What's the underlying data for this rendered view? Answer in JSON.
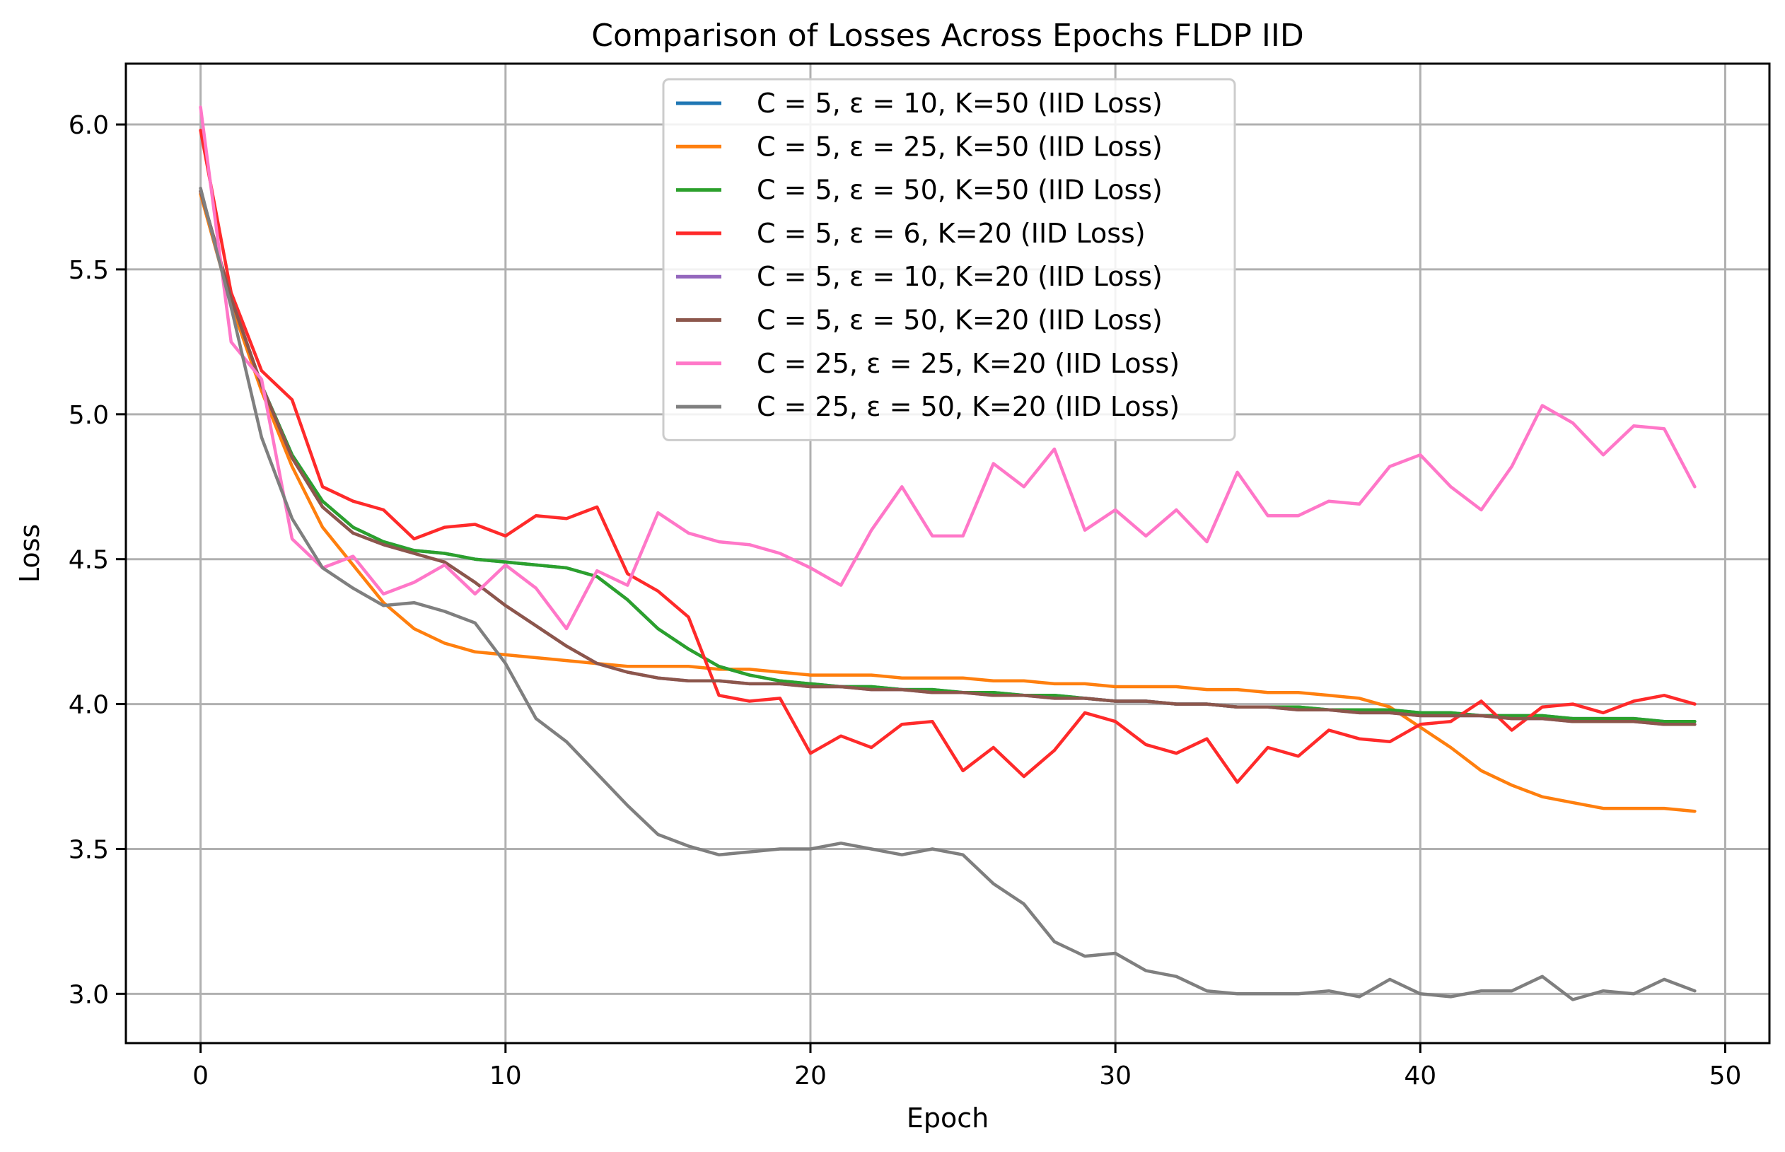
{
  "chart_data": {
    "type": "line",
    "title": "Comparison of Losses Across Epochs FLDP IID",
    "xlabel": "Epoch",
    "ylabel": "Loss",
    "xlim": [
      -2.45,
      51.45
    ],
    "ylim": [
      2.83,
      6.21
    ],
    "xticks": [
      0,
      10,
      20,
      30,
      40,
      50
    ],
    "xtick_labels": [
      "0",
      "10",
      "20",
      "30",
      "40",
      "50"
    ],
    "yticks": [
      3.0,
      3.5,
      4.0,
      4.5,
      5.0,
      5.5,
      6.0
    ],
    "ytick_labels": [
      "3.0",
      "3.5",
      "4.0",
      "4.5",
      "5.0",
      "5.5",
      "6.0"
    ],
    "grid": true,
    "legend_position": "top-center",
    "x": [
      0,
      1,
      2,
      3,
      4,
      5,
      6,
      7,
      8,
      9,
      10,
      11,
      12,
      13,
      14,
      15,
      16,
      17,
      18,
      19,
      20,
      21,
      22,
      23,
      24,
      25,
      26,
      27,
      28,
      29,
      30,
      31,
      32,
      33,
      34,
      35,
      36,
      37,
      38,
      39,
      40,
      41,
      42,
      43,
      44,
      45,
      46,
      47,
      48,
      49
    ],
    "series": [
      {
        "name": "C = 5, ε = 10, K=50 (IID Loss)",
        "color": "#1f77b4",
        "values": [
          5.77,
          5.4,
          5.1,
          4.86,
          4.7,
          4.61,
          4.56,
          4.53,
          4.52,
          4.5,
          4.49,
          4.48,
          4.47,
          4.44,
          4.36,
          4.26,
          4.19,
          4.13,
          4.1,
          4.08,
          4.07,
          4.06,
          4.06,
          4.05,
          4.05,
          4.04,
          4.04,
          4.03,
          4.03,
          4.02,
          4.01,
          4.01,
          4.0,
          4.0,
          3.99,
          3.99,
          3.99,
          3.98,
          3.98,
          3.98,
          3.97,
          3.97,
          3.96,
          3.96,
          3.96,
          3.95,
          3.95,
          3.95,
          3.94,
          3.94
        ]
      },
      {
        "name": "C = 5, ε = 25, K=50 (IID Loss)",
        "color": "#ff7f0e",
        "values": [
          5.76,
          5.38,
          5.08,
          4.82,
          4.61,
          4.48,
          4.35,
          4.26,
          4.21,
          4.18,
          4.17,
          4.16,
          4.15,
          4.14,
          4.13,
          4.13,
          4.13,
          4.12,
          4.12,
          4.11,
          4.1,
          4.1,
          4.1,
          4.09,
          4.09,
          4.09,
          4.08,
          4.08,
          4.07,
          4.07,
          4.06,
          4.06,
          4.06,
          4.05,
          4.05,
          4.04,
          4.04,
          4.03,
          4.02,
          3.99,
          3.92,
          3.85,
          3.77,
          3.72,
          3.68,
          3.66,
          3.64,
          3.64,
          3.64,
          3.63
        ]
      },
      {
        "name": "C = 5, ε = 50, K=50 (IID Loss)",
        "color": "#2ca02c",
        "values": [
          5.77,
          5.4,
          5.1,
          4.86,
          4.7,
          4.61,
          4.56,
          4.53,
          4.52,
          4.5,
          4.49,
          4.48,
          4.47,
          4.44,
          4.36,
          4.26,
          4.19,
          4.13,
          4.1,
          4.08,
          4.07,
          4.06,
          4.06,
          4.05,
          4.05,
          4.04,
          4.04,
          4.03,
          4.03,
          4.02,
          4.01,
          4.01,
          4.0,
          4.0,
          3.99,
          3.99,
          3.99,
          3.98,
          3.98,
          3.98,
          3.97,
          3.97,
          3.96,
          3.96,
          3.96,
          3.95,
          3.95,
          3.95,
          3.94,
          3.94
        ]
      },
      {
        "name": "C = 5, ε = 6, K=20 (IID Loss)",
        "color": "#ff2a2a",
        "values": [
          5.98,
          5.42,
          5.15,
          5.05,
          4.75,
          4.7,
          4.67,
          4.57,
          4.61,
          4.62,
          4.58,
          4.65,
          4.64,
          4.68,
          4.45,
          4.39,
          4.3,
          4.03,
          4.01,
          4.02,
          3.83,
          3.89,
          3.85,
          3.93,
          3.94,
          3.77,
          3.85,
          3.75,
          3.84,
          3.97,
          3.94,
          3.86,
          3.83,
          3.88,
          3.73,
          3.85,
          3.82,
          3.91,
          3.88,
          3.87,
          3.93,
          3.94,
          4.01,
          3.91,
          3.99,
          4.0,
          3.97,
          4.01,
          4.03,
          4.0
        ]
      },
      {
        "name": "C = 5, ε = 10, K=20 (IID Loss)",
        "color": "#9467bd",
        "values": [
          5.77,
          5.4,
          5.1,
          4.85,
          4.68,
          4.59,
          4.55,
          4.52,
          4.49,
          4.42,
          4.34,
          4.27,
          4.2,
          4.14,
          4.11,
          4.09,
          4.08,
          4.08,
          4.07,
          4.07,
          4.06,
          4.06,
          4.05,
          4.05,
          4.04,
          4.04,
          4.03,
          4.03,
          4.02,
          4.02,
          4.01,
          4.01,
          4.0,
          4.0,
          3.99,
          3.99,
          3.98,
          3.98,
          3.97,
          3.97,
          3.96,
          3.96,
          3.96,
          3.95,
          3.95,
          3.94,
          3.94,
          3.94,
          3.93,
          3.93
        ]
      },
      {
        "name": "C = 5, ε = 50, K=20 (IID Loss)",
        "color": "#8c564b",
        "values": [
          5.77,
          5.4,
          5.1,
          4.85,
          4.68,
          4.59,
          4.55,
          4.52,
          4.49,
          4.42,
          4.34,
          4.27,
          4.2,
          4.14,
          4.11,
          4.09,
          4.08,
          4.08,
          4.07,
          4.07,
          4.06,
          4.06,
          4.05,
          4.05,
          4.04,
          4.04,
          4.03,
          4.03,
          4.02,
          4.02,
          4.01,
          4.01,
          4.0,
          4.0,
          3.99,
          3.99,
          3.98,
          3.98,
          3.97,
          3.97,
          3.96,
          3.96,
          3.96,
          3.95,
          3.95,
          3.94,
          3.94,
          3.94,
          3.93,
          3.93
        ]
      },
      {
        "name": "C = 25, ε = 25, K=20 (IID Loss)",
        "color": "#ff77c8",
        "values": [
          6.06,
          5.25,
          5.12,
          4.57,
          4.47,
          4.51,
          4.38,
          4.42,
          4.48,
          4.38,
          4.48,
          4.4,
          4.26,
          4.46,
          4.41,
          4.66,
          4.59,
          4.56,
          4.55,
          4.52,
          4.47,
          4.41,
          4.6,
          4.75,
          4.58,
          4.58,
          4.83,
          4.75,
          4.88,
          4.6,
          4.67,
          4.58,
          4.67,
          4.56,
          4.8,
          4.65,
          4.65,
          4.7,
          4.69,
          4.82,
          4.86,
          4.75,
          4.67,
          4.82,
          5.03,
          4.97,
          4.86,
          4.96,
          4.95,
          4.75
        ]
      },
      {
        "name": "C = 25, ε = 50, K=20 (IID Loss)",
        "color": "#7f7f7f",
        "values": [
          5.78,
          5.37,
          4.92,
          4.64,
          4.47,
          4.4,
          4.34,
          4.35,
          4.32,
          4.28,
          4.14,
          3.95,
          3.87,
          3.76,
          3.65,
          3.55,
          3.51,
          3.48,
          3.49,
          3.5,
          3.5,
          3.52,
          3.5,
          3.48,
          3.5,
          3.48,
          3.38,
          3.31,
          3.18,
          3.13,
          3.14,
          3.08,
          3.06,
          3.01,
          3.0,
          3.0,
          3.0,
          3.01,
          2.99,
          3.05,
          3.0,
          2.99,
          3.01,
          3.01,
          3.06,
          2.98,
          3.01,
          3.0,
          3.05,
          3.01
        ]
      }
    ]
  }
}
